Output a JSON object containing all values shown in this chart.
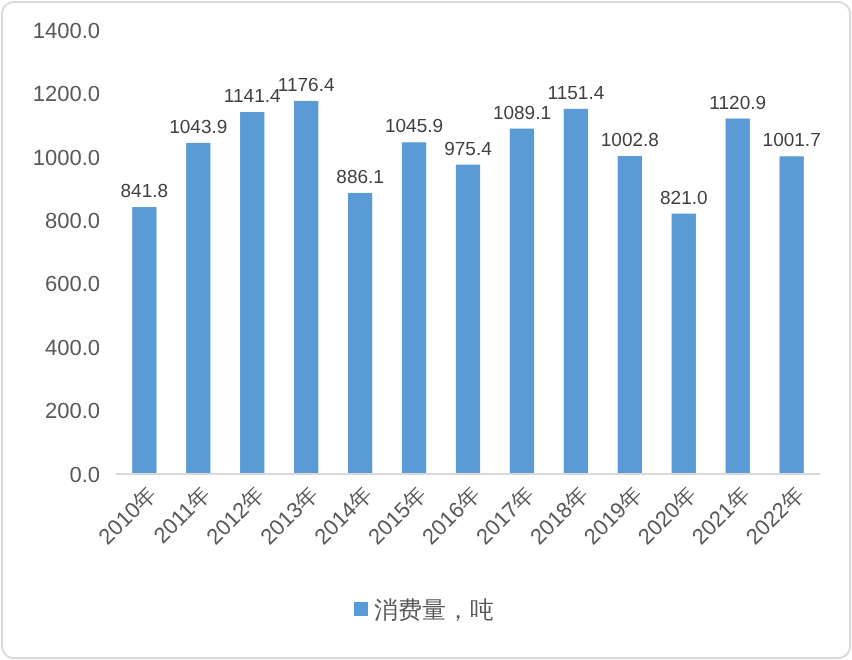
{
  "chart_data": {
    "type": "bar",
    "categories": [
      "2010年",
      "2011年",
      "2012年",
      "2013年",
      "2014年",
      "2015年",
      "2016年",
      "2017年",
      "2018年",
      "2019年",
      "2020年",
      "2021年",
      "2022年"
    ],
    "series": [
      {
        "name": "消费量，吨",
        "color": "#5b9bd5",
        "values": [
          841.8,
          1043.9,
          1141.4,
          1176.4,
          886.1,
          1045.9,
          975.4,
          1089.1,
          1151.4,
          1002.8,
          821.0,
          1120.9,
          1001.7
        ],
        "value_labels": [
          "841.8",
          "1043.9",
          "1141.4",
          "1176.4",
          "886.1",
          "1045.9",
          "975.4",
          "1089.1",
          "1151.4",
          "1002.8",
          "821.0",
          "1120.9",
          "1001.7"
        ]
      }
    ],
    "ylim": [
      0,
      1400
    ],
    "yticks": [
      {
        "value": 0,
        "label": "0.0"
      },
      {
        "value": 200,
        "label": "200.0"
      },
      {
        "value": 400,
        "label": "400.0"
      },
      {
        "value": 600,
        "label": "600.0"
      },
      {
        "value": 800,
        "label": "800.0"
      },
      {
        "value": 1000,
        "label": "1000.0"
      },
      {
        "value": 1200,
        "label": "1200.0"
      },
      {
        "value": 1400,
        "label": "1400.0"
      }
    ],
    "grid": false,
    "legend": "bottom"
  }
}
